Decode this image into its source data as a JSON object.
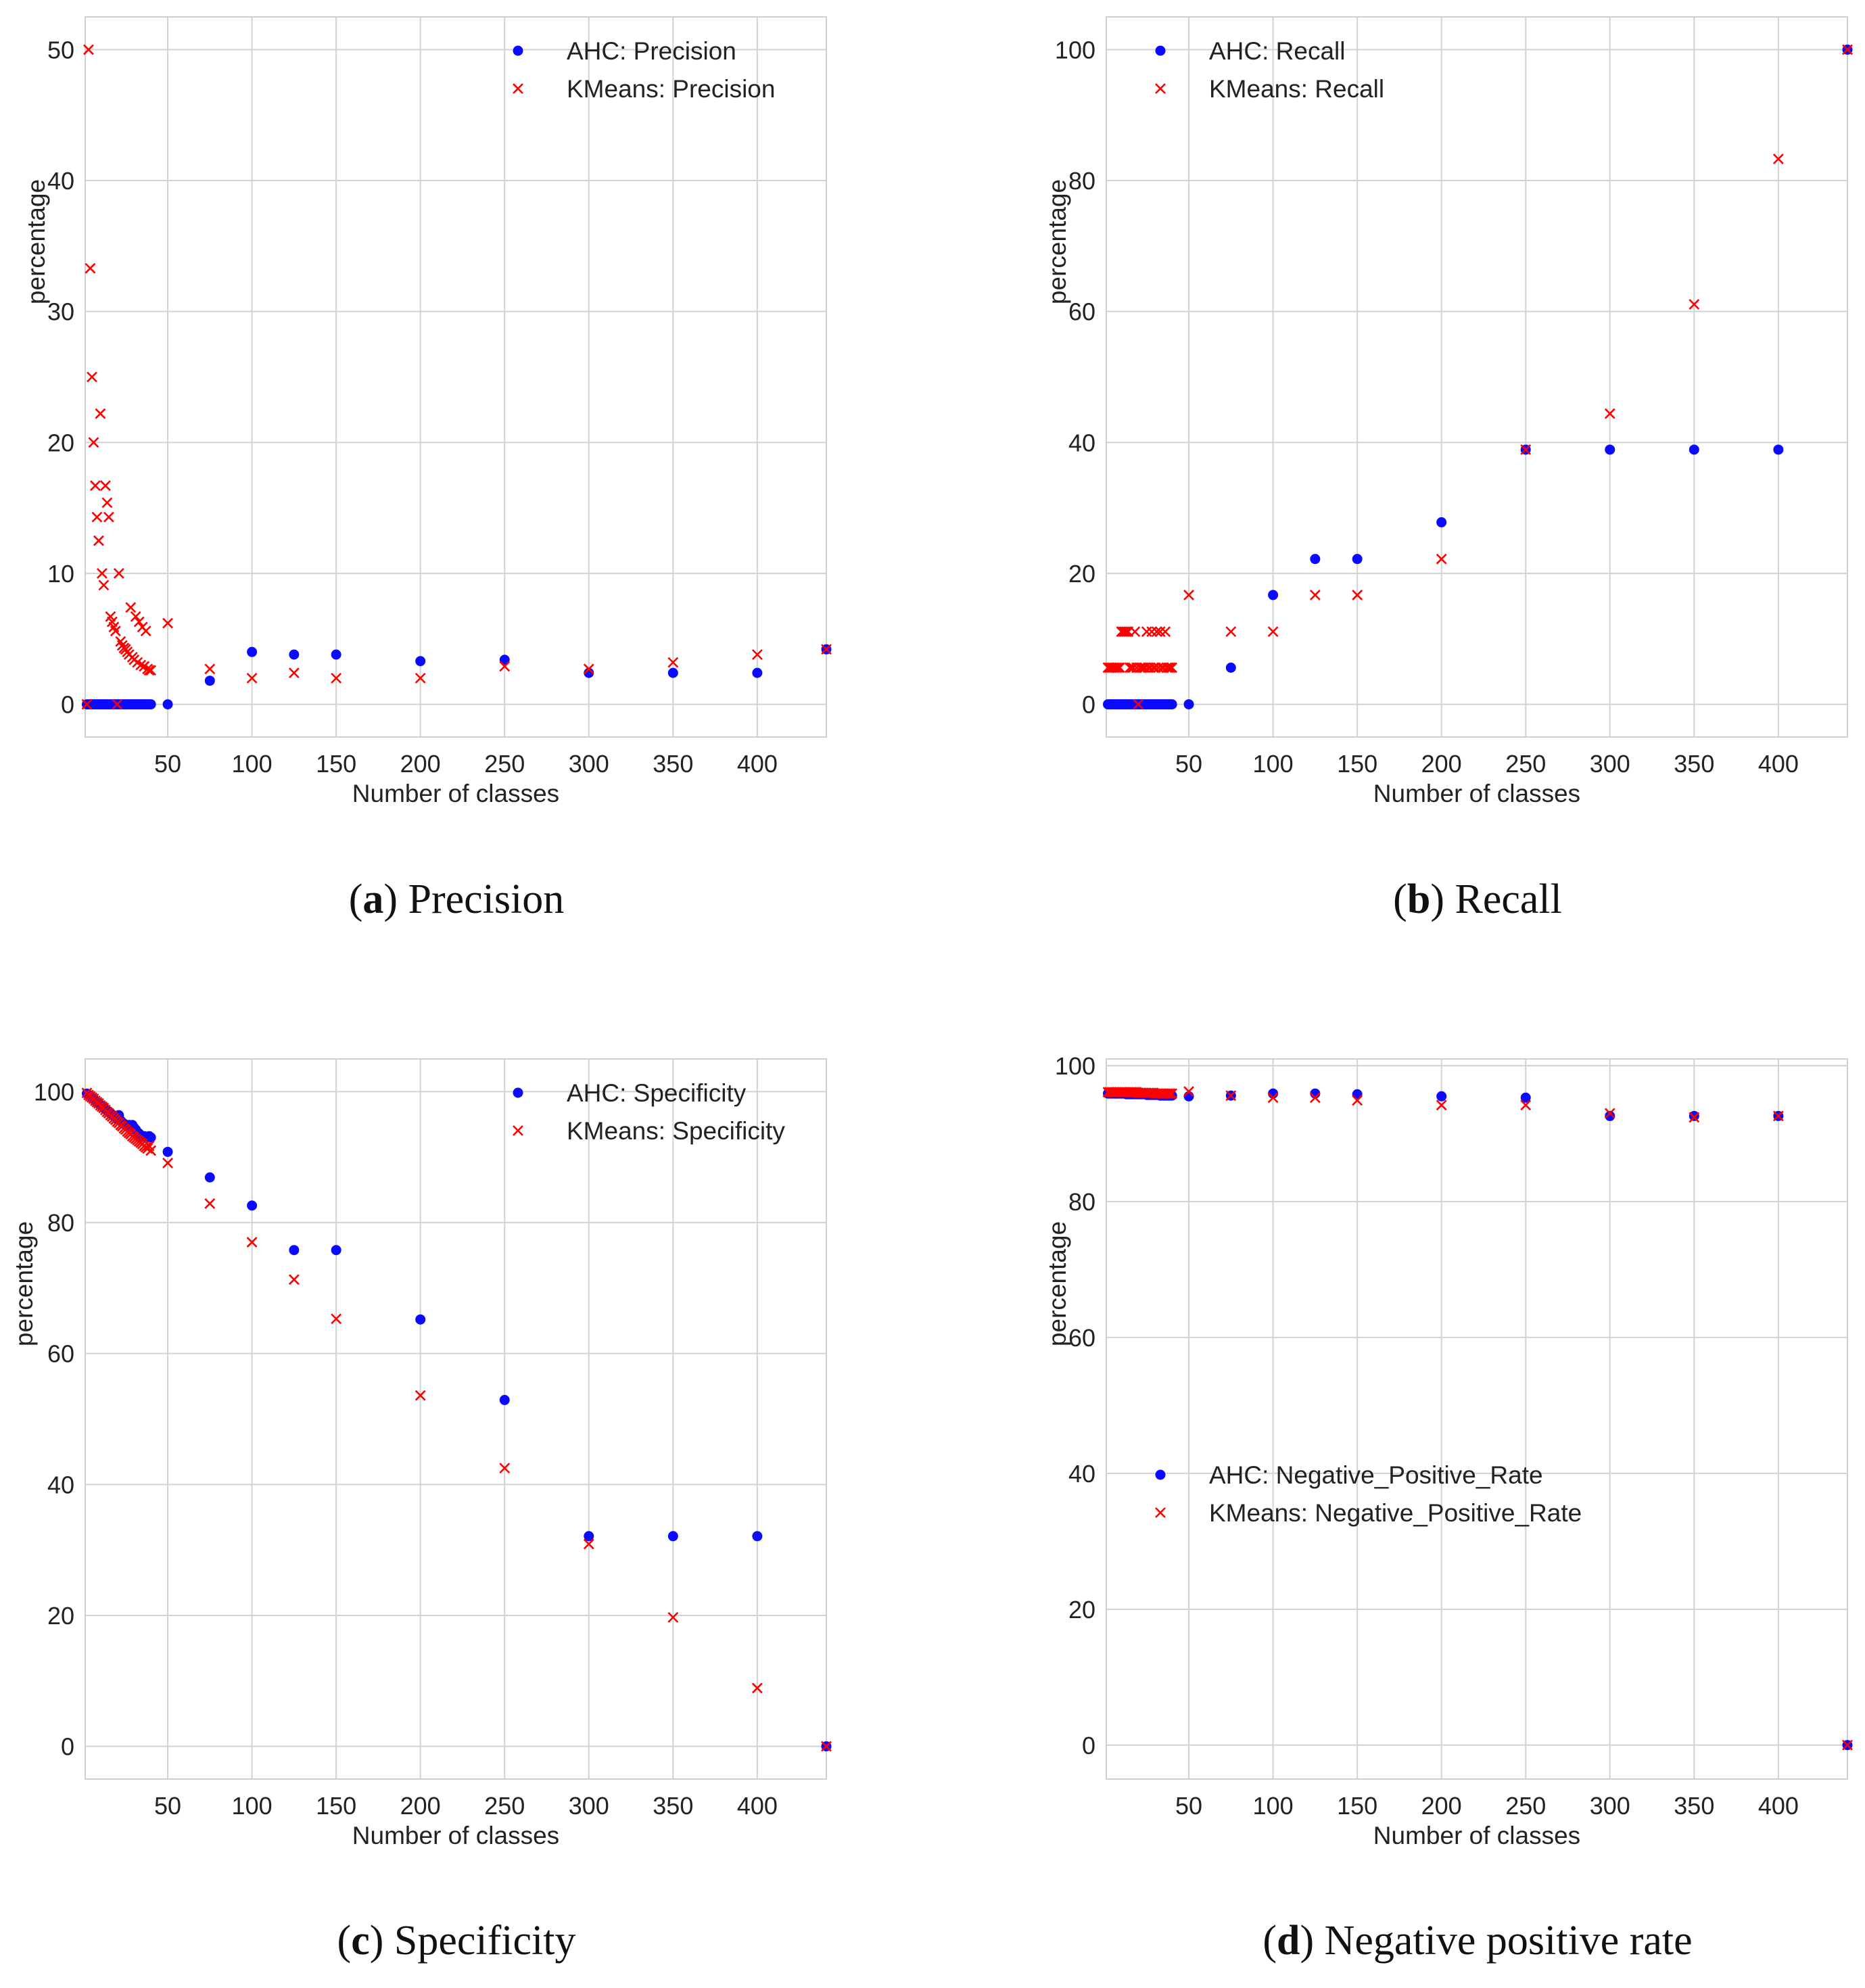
{
  "colors": {
    "ahc": "#0a0aff",
    "kmeans": "#ff0000",
    "grid": "#d2d2d2"
  },
  "chart_data": [
    {
      "id": "a",
      "type": "scatter",
      "caption": {
        "letter": "a",
        "text": "Precision"
      },
      "xlabel": "Number of classes",
      "ylabel": "percentage",
      "xlim": [
        1,
        441
      ],
      "ylim": [
        -2.5,
        52.5
      ],
      "xticks": [
        50,
        100,
        150,
        200,
        250,
        300,
        350,
        400
      ],
      "yticks": [
        0,
        10,
        20,
        30,
        40,
        50
      ],
      "grid": true,
      "legend": "top-right",
      "series": [
        {
          "name": "AHC: Precision",
          "marker": "dot",
          "x": [
            2,
            3,
            4,
            5,
            6,
            7,
            8,
            9,
            10,
            11,
            12,
            13,
            14,
            15,
            16,
            17,
            18,
            19,
            20,
            21,
            22,
            23,
            24,
            25,
            26,
            27,
            28,
            29,
            30,
            31,
            32,
            33,
            34,
            35,
            36,
            37,
            38,
            39,
            40,
            50,
            75,
            100,
            125,
            150,
            200,
            250,
            300,
            350,
            400,
            441
          ],
          "y": [
            0,
            0,
            0,
            0,
            0,
            0,
            0,
            0,
            0,
            0,
            0,
            0,
            0,
            0,
            0,
            0,
            0,
            0,
            0,
            0,
            0,
            0,
            0,
            0,
            0,
            0,
            0,
            0,
            0,
            0,
            0,
            0,
            0,
            0,
            0,
            0,
            0,
            0,
            0,
            0,
            1.8,
            4.0,
            3.8,
            3.8,
            3.3,
            3.4,
            2.4,
            2.4,
            2.4,
            4.2
          ]
        },
        {
          "name": "KMeans: Precision",
          "marker": "x",
          "x": [
            2,
            3,
            4,
            5,
            6,
            7,
            8,
            9,
            10,
            11,
            12,
            13,
            14,
            15,
            16,
            17,
            18,
            19,
            20,
            21,
            22,
            23,
            24,
            25,
            26,
            27,
            28,
            29,
            30,
            31,
            32,
            33,
            34,
            35,
            36,
            37,
            38,
            39,
            40,
            50,
            75,
            100,
            125,
            150,
            200,
            250,
            300,
            350,
            400,
            441
          ],
          "y": [
            0,
            50,
            33.3,
            25,
            20,
            16.7,
            14.3,
            12.5,
            22.2,
            10,
            9.1,
            16.7,
            15.4,
            14.3,
            6.7,
            6.3,
            5.9,
            5.6,
            0,
            10,
            4.8,
            4.5,
            4.3,
            4.2,
            4,
            3.8,
            7.4,
            3.6,
            3.4,
            6.7,
            3.2,
            6.3,
            3.0,
            5.9,
            2.9,
            5.6,
            2.7,
            2.6,
            2.6,
            6.2,
            2.7,
            2.0,
            2.4,
            2.0,
            2.0,
            2.9,
            2.7,
            3.2,
            3.8,
            4.2
          ]
        }
      ]
    },
    {
      "id": "b",
      "type": "scatter",
      "caption": {
        "letter": "b",
        "text": "Recall"
      },
      "xlabel": "Number of classes",
      "ylabel": "percentage",
      "xlim": [
        1,
        441
      ],
      "ylim": [
        -5,
        105
      ],
      "xticks": [
        50,
        100,
        150,
        200,
        250,
        300,
        350,
        400
      ],
      "yticks": [
        0,
        20,
        40,
        60,
        80,
        100
      ],
      "grid": true,
      "legend": "top-left",
      "series": [
        {
          "name": "AHC: Recall",
          "marker": "dot",
          "x": [
            2,
            3,
            4,
            5,
            6,
            7,
            8,
            9,
            10,
            11,
            12,
            13,
            14,
            15,
            16,
            17,
            18,
            19,
            20,
            21,
            22,
            23,
            24,
            25,
            26,
            27,
            28,
            29,
            30,
            31,
            32,
            33,
            34,
            35,
            36,
            37,
            38,
            39,
            40,
            50,
            75,
            100,
            125,
            150,
            200,
            250,
            300,
            350,
            400,
            441
          ],
          "y": [
            0,
            0,
            0,
            0,
            0,
            0,
            0,
            0,
            0,
            0,
            0,
            0,
            0,
            0,
            0,
            0,
            0,
            0,
            0,
            0,
            0,
            0,
            0,
            0,
            0,
            0,
            0,
            0,
            0,
            0,
            0,
            0,
            0,
            0,
            0,
            0,
            0,
            0,
            0,
            0,
            5.6,
            16.7,
            22.2,
            22.2,
            27.8,
            38.9,
            38.9,
            38.9,
            38.9,
            100
          ]
        },
        {
          "name": "KMeans: Recall",
          "marker": "x",
          "x": [
            2,
            3,
            4,
            5,
            6,
            7,
            8,
            9,
            10,
            11,
            12,
            13,
            14,
            15,
            16,
            17,
            18,
            19,
            20,
            21,
            22,
            23,
            24,
            25,
            26,
            27,
            28,
            29,
            30,
            31,
            32,
            33,
            34,
            35,
            36,
            37,
            38,
            39,
            40,
            50,
            75,
            100,
            125,
            150,
            200,
            250,
            300,
            350,
            400,
            441
          ],
          "y": [
            5.6,
            5.6,
            5.6,
            5.6,
            5.6,
            5.6,
            5.6,
            5.6,
            11.1,
            11.1,
            11.1,
            11.1,
            11.1,
            5.6,
            5.6,
            5.6,
            11.1,
            5.6,
            0,
            5.6,
            5.6,
            5.6,
            5.6,
            11.1,
            5.6,
            5.6,
            11.1,
            5.6,
            5.6,
            11.1,
            5.6,
            11.1,
            5.6,
            5.6,
            11.1,
            5.6,
            5.6,
            5.6,
            5.6,
            16.7,
            11.1,
            11.1,
            16.7,
            16.7,
            22.2,
            38.9,
            44.4,
            61.1,
            83.3,
            100
          ]
        }
      ]
    },
    {
      "id": "c",
      "type": "scatter",
      "caption": {
        "letter": "c",
        "text": "Specificity"
      },
      "xlabel": "Number of classes",
      "ylabel": "percentage",
      "xlim": [
        1,
        441
      ],
      "ylim": [
        -5,
        105
      ],
      "xticks": [
        50,
        100,
        150,
        200,
        250,
        300,
        350,
        400
      ],
      "yticks": [
        0,
        20,
        40,
        60,
        80,
        100
      ],
      "grid": true,
      "legend": "top-right",
      "series": [
        {
          "name": "AHC: Specificity",
          "marker": "dot",
          "x": [
            2,
            3,
            4,
            5,
            6,
            7,
            8,
            9,
            10,
            11,
            12,
            13,
            14,
            15,
            16,
            17,
            18,
            19,
            20,
            21,
            22,
            23,
            24,
            25,
            26,
            27,
            28,
            29,
            30,
            31,
            32,
            33,
            34,
            35,
            36,
            37,
            38,
            39,
            40,
            50,
            75,
            100,
            125,
            150,
            200,
            250,
            300,
            350,
            400,
            441
          ],
          "y": [
            99.7,
            99.5,
            99.3,
            99.1,
            98.9,
            98.6,
            98.4,
            98.2,
            98.0,
            97.8,
            97.6,
            97.3,
            97.1,
            96.9,
            96.7,
            96.5,
            96.3,
            96.1,
            95.8,
            96.4,
            95.6,
            95.3,
            95.1,
            94.9,
            94.7,
            94.9,
            94.7,
            94.9,
            94.5,
            94.2,
            93.8,
            93.6,
            93.3,
            93.1,
            93.2,
            93.1,
            93.1,
            93.2,
            93.0,
            90.8,
            86.9,
            82.6,
            75.8,
            75.8,
            65.2,
            52.9,
            32.1,
            32.1,
            32.1,
            0
          ]
        },
        {
          "name": "KMeans: Specificity",
          "marker": "x",
          "x": [
            2,
            3,
            4,
            5,
            6,
            7,
            8,
            9,
            10,
            11,
            12,
            13,
            14,
            15,
            16,
            17,
            18,
            19,
            20,
            21,
            22,
            23,
            24,
            25,
            26,
            27,
            28,
            29,
            30,
            31,
            32,
            33,
            34,
            35,
            36,
            37,
            38,
            39,
            40,
            50,
            75,
            100,
            125,
            150,
            200,
            250,
            300,
            350,
            400,
            441
          ],
          "y": [
            99.8,
            99.5,
            99.3,
            99.1,
            98.9,
            98.6,
            98.4,
            98.2,
            97.9,
            97.7,
            97.5,
            97.2,
            96.9,
            96.7,
            96.4,
            96.2,
            95.9,
            95.7,
            95.4,
            95.2,
            94.9,
            94.7,
            94.4,
            94.2,
            93.9,
            93.7,
            93.5,
            93.2,
            93.0,
            92.8,
            92.6,
            92.4,
            92.2,
            92.0,
            91.7,
            91.5,
            91.3,
            91.7,
            91.0,
            89.1,
            82.9,
            77.0,
            71.3,
            65.3,
            53.6,
            42.5,
            30.9,
            19.7,
            8.9,
            0
          ]
        }
      ]
    },
    {
      "id": "d",
      "type": "scatter",
      "caption": {
        "letter": "d",
        "text": "Negative positive rate"
      },
      "xlabel": "Number of classes",
      "ylabel": "percentage",
      "xlim": [
        1,
        441
      ],
      "ylim": [
        -5,
        101
      ],
      "xticks": [
        50,
        100,
        150,
        200,
        250,
        300,
        350,
        400
      ],
      "yticks": [
        0,
        20,
        40,
        60,
        80,
        100
      ],
      "grid": true,
      "legend": "bottom-left",
      "series": [
        {
          "name": "AHC: Negative_Positive_Rate",
          "marker": "dot",
          "x": [
            2,
            3,
            4,
            5,
            6,
            7,
            8,
            9,
            10,
            11,
            12,
            13,
            14,
            15,
            16,
            17,
            18,
            19,
            20,
            21,
            22,
            23,
            24,
            25,
            26,
            27,
            28,
            29,
            30,
            31,
            32,
            33,
            34,
            35,
            36,
            37,
            38,
            39,
            40,
            50,
            75,
            100,
            125,
            150,
            200,
            250,
            300,
            350,
            400,
            441
          ],
          "y": [
            95.9,
            95.9,
            95.9,
            95.9,
            95.9,
            95.9,
            95.9,
            95.9,
            95.9,
            95.9,
            95.9,
            95.8,
            95.8,
            95.8,
            95.8,
            95.8,
            95.8,
            95.8,
            95.8,
            95.8,
            95.8,
            95.8,
            95.8,
            95.7,
            95.7,
            95.7,
            95.7,
            95.7,
            95.7,
            95.7,
            95.7,
            95.6,
            95.6,
            95.6,
            95.6,
            95.6,
            95.6,
            95.6,
            95.6,
            95.5,
            95.6,
            95.9,
            95.9,
            95.8,
            95.5,
            95.3,
            92.6,
            92.6,
            92.6,
            0
          ]
        },
        {
          "name": "KMeans: Negative_Positive_Rate",
          "marker": "x",
          "x": [
            2,
            3,
            4,
            5,
            6,
            7,
            8,
            9,
            10,
            11,
            12,
            13,
            14,
            15,
            16,
            17,
            18,
            19,
            20,
            21,
            22,
            23,
            24,
            25,
            26,
            27,
            28,
            29,
            30,
            31,
            32,
            33,
            34,
            35,
            36,
            37,
            38,
            39,
            40,
            50,
            75,
            100,
            125,
            150,
            200,
            250,
            300,
            350,
            400,
            441
          ],
          "y": [
            96.1,
            96.1,
            96.1,
            96.1,
            96.1,
            96.1,
            96.1,
            96.1,
            96.1,
            96.1,
            96.1,
            96.1,
            96.1,
            96.1,
            96.1,
            96.1,
            96.1,
            96.1,
            96.0,
            96.0,
            96.0,
            96.0,
            96.0,
            96.0,
            96.0,
            96.0,
            96.0,
            96.0,
            95.9,
            95.9,
            95.9,
            95.9,
            95.9,
            95.9,
            95.9,
            95.9,
            95.9,
            95.9,
            95.9,
            96.2,
            95.6,
            95.3,
            95.3,
            94.9,
            94.2,
            94.2,
            93.0,
            92.4,
            92.6,
            0
          ]
        }
      ]
    }
  ]
}
